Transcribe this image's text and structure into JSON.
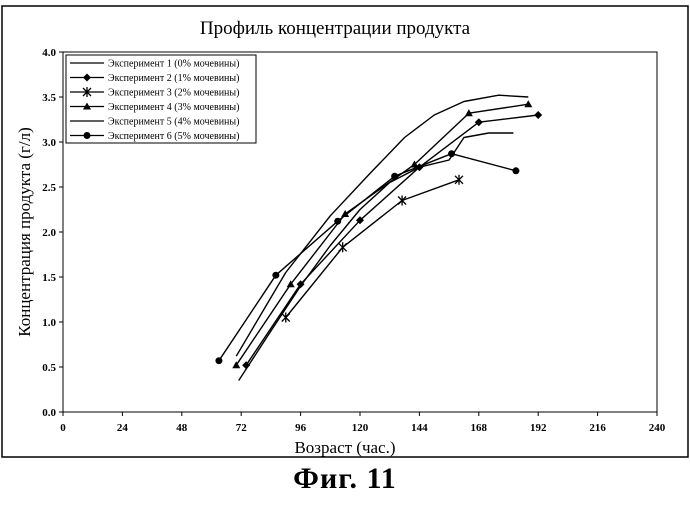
{
  "figure_caption": "Фиг.  11",
  "chart_data": {
    "type": "line",
    "title": "Профиль концентрации продукта",
    "xlabel": "Возраст (час.)",
    "ylabel": "Концентрация продукта (г/л)",
    "xlim": [
      0,
      240
    ],
    "ylim": [
      0,
      4.0
    ],
    "x_ticks": [
      0,
      24,
      48,
      72,
      96,
      120,
      144,
      168,
      192,
      216,
      240
    ],
    "y_ticks": [
      "0.0",
      "0.5",
      "1.0",
      "1.5",
      "2.0",
      "2.5",
      "3.0",
      "3.5",
      "4.0"
    ],
    "grid": false,
    "legend_position": "top-left",
    "series": [
      {
        "name": "Эксперимент 1 (0% мочевины)",
        "marker": "none",
        "x": [
          71,
          84,
          96,
          108,
          120,
          132,
          144,
          156,
          162,
          172,
          182
        ],
        "y": [
          0.35,
          0.9,
          1.4,
          1.85,
          2.25,
          2.55,
          2.72,
          2.8,
          3.05,
          3.1,
          3.1
        ]
      },
      {
        "name": "Эксперимент 2 (1% мочевины)",
        "marker": "diamond",
        "x": [
          74,
          96,
          120,
          144,
          168,
          192
        ],
        "y": [
          0.52,
          1.42,
          2.13,
          2.72,
          3.22,
          3.3
        ]
      },
      {
        "name": "Эксперимент 3 (2% мочевины)",
        "marker": "star",
        "x": [
          90,
          113,
          137,
          160
        ],
        "y": [
          1.05,
          1.83,
          2.35,
          2.58
        ]
      },
      {
        "name": "Эксперимент 4 (3% мочевины)",
        "marker": "triangle",
        "x": [
          70,
          92,
          114,
          142,
          164,
          188
        ],
        "y": [
          0.52,
          1.42,
          2.2,
          2.75,
          3.32,
          3.42
        ]
      },
      {
        "name": "Эксперимент 5 (4% мочевины)",
        "marker": "none",
        "x": [
          70,
          90,
          108,
          124,
          138,
          150,
          162,
          176,
          188
        ],
        "y": [
          0.62,
          1.55,
          2.18,
          2.65,
          3.05,
          3.3,
          3.45,
          3.52,
          3.5
        ]
      },
      {
        "name": "Эксперимент 6 (5% мочевины)",
        "marker": "circle",
        "x": [
          63,
          86,
          111,
          134,
          157,
          183
        ],
        "y": [
          0.57,
          1.52,
          2.12,
          2.62,
          2.87,
          2.68
        ]
      }
    ]
  }
}
